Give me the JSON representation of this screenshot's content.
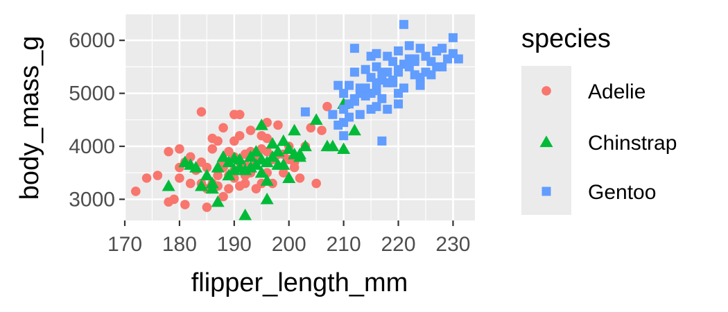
{
  "chart_data": {
    "type": "scatter",
    "xlabel": "flipper_length_mm",
    "ylabel": "body_mass_g",
    "xlim": [
      170,
      234
    ],
    "ylim": [
      2600,
      6500
    ],
    "x_ticks": [
      "170",
      "180",
      "190",
      "200",
      "210",
      "220",
      "230"
    ],
    "y_ticks": [
      "3000",
      "4000",
      "5000",
      "6000"
    ],
    "grid": true,
    "legend": {
      "title": "species",
      "position": "right"
    },
    "series": [
      {
        "name": "Adelie",
        "color": "#F8766D",
        "marker": "circle",
        "points": [
          [
            172,
            3150
          ],
          [
            174,
            3400
          ],
          [
            176,
            3450
          ],
          [
            178,
            3900
          ],
          [
            178,
            2950
          ],
          [
            179,
            3000
          ],
          [
            180,
            3950
          ],
          [
            180,
            3600
          ],
          [
            181,
            2900
          ],
          [
            182,
            3800
          ],
          [
            183,
            3550
          ],
          [
            184,
            3300
          ],
          [
            184,
            4650
          ],
          [
            185,
            3600
          ],
          [
            185,
            2850
          ],
          [
            185,
            3200
          ],
          [
            186,
            3950
          ],
          [
            187,
            3450
          ],
          [
            187,
            4100
          ],
          [
            188,
            3600
          ],
          [
            188,
            4350
          ],
          [
            189,
            3200
          ],
          [
            189,
            3900
          ],
          [
            190,
            4600
          ],
          [
            190,
            3550
          ],
          [
            190,
            4100
          ],
          [
            191,
            3700
          ],
          [
            191,
            4200
          ],
          [
            191,
            4600
          ],
          [
            192,
            3450
          ],
          [
            192,
            3850
          ],
          [
            193,
            4300
          ],
          [
            193,
            3500
          ],
          [
            194,
            3700
          ],
          [
            195,
            3950
          ],
          [
            195,
            3300
          ],
          [
            196,
            4150
          ],
          [
            196,
            4450
          ],
          [
            197,
            3750
          ],
          [
            198,
            4400
          ],
          [
            199,
            3850
          ],
          [
            200,
            4000
          ],
          [
            201,
            3600
          ],
          [
            202,
            3400
          ],
          [
            203,
            4000
          ],
          [
            204,
            4350
          ],
          [
            205,
            3300
          ],
          [
            206,
            4300
          ],
          [
            207,
            4750
          ],
          [
            183,
            3550
          ],
          [
            187,
            3250
          ],
          [
            189,
            3450
          ],
          [
            190,
            3400
          ],
          [
            192,
            3650
          ],
          [
            194,
            3800
          ],
          [
            196,
            3500
          ],
          [
            186,
            3300
          ],
          [
            188,
            3700
          ],
          [
            191,
            3250
          ],
          [
            184,
            3700
          ],
          [
            180,
            3400
          ],
          [
            182,
            3300
          ],
          [
            193,
            3900
          ],
          [
            195,
            4200
          ],
          [
            197,
            3300
          ],
          [
            199,
            3500
          ],
          [
            201,
            3700
          ],
          [
            181,
            3700
          ],
          [
            186,
            4150
          ],
          [
            188,
            3050
          ],
          [
            190,
            3800
          ],
          [
            192,
            3300
          ],
          [
            194,
            3200
          ],
          [
            196,
            3900
          ],
          [
            198,
            3850
          ],
          [
            200,
            3750
          ]
        ]
      },
      {
        "name": "Chinstrap",
        "color": "#00BA38",
        "marker": "triangle",
        "points": [
          [
            178,
            3250
          ],
          [
            181,
            3700
          ],
          [
            182,
            3650
          ],
          [
            183,
            3600
          ],
          [
            185,
            3450
          ],
          [
            186,
            3300
          ],
          [
            187,
            2950
          ],
          [
            187,
            3600
          ],
          [
            188,
            3800
          ],
          [
            189,
            3700
          ],
          [
            190,
            3550
          ],
          [
            191,
            3750
          ],
          [
            192,
            2700
          ],
          [
            192,
            3550
          ],
          [
            193,
            3800
          ],
          [
            194,
            3650
          ],
          [
            195,
            3500
          ],
          [
            195,
            4400
          ],
          [
            196,
            3700
          ],
          [
            197,
            3800
          ],
          [
            198,
            3650
          ],
          [
            199,
            3650
          ],
          [
            200,
            3950
          ],
          [
            201,
            3850
          ],
          [
            201,
            4300
          ],
          [
            202,
            3850
          ],
          [
            203,
            4000
          ],
          [
            205,
            4500
          ],
          [
            207,
            4000
          ],
          [
            208,
            4000
          ],
          [
            210,
            4800
          ],
          [
            212,
            4300
          ],
          [
            191,
            3600
          ],
          [
            193,
            3600
          ],
          [
            194,
            3900
          ],
          [
            196,
            3350
          ],
          [
            198,
            3900
          ],
          [
            200,
            3400
          ],
          [
            202,
            3800
          ],
          [
            189,
            3450
          ],
          [
            186,
            3200
          ],
          [
            184,
            3250
          ],
          [
            190,
            3775
          ],
          [
            195,
            3750
          ],
          [
            197,
            4050
          ],
          [
            199,
            4100
          ],
          [
            210,
            3950
          ],
          [
            196,
            3000
          ]
        ]
      },
      {
        "name": "Gentoo",
        "color": "#619CFF",
        "marker": "square",
        "points": [
          [
            203,
            4650
          ],
          [
            208,
            4600
          ],
          [
            209,
            5150
          ],
          [
            210,
            4450
          ],
          [
            210,
            4700
          ],
          [
            210,
            5000
          ],
          [
            211,
            4800
          ],
          [
            211,
            5150
          ],
          [
            212,
            4850
          ],
          [
            212,
            5400
          ],
          [
            213,
            4600
          ],
          [
            213,
            5100
          ],
          [
            214,
            4950
          ],
          [
            214,
            5450
          ],
          [
            215,
            4700
          ],
          [
            215,
            5300
          ],
          [
            215,
            5700
          ],
          [
            216,
            4750
          ],
          [
            216,
            5050
          ],
          [
            216,
            5500
          ],
          [
            217,
            4100
          ],
          [
            217,
            4900
          ],
          [
            217,
            5400
          ],
          [
            218,
            4700
          ],
          [
            218,
            5200
          ],
          [
            218,
            5700
          ],
          [
            219,
            5200
          ],
          [
            219,
            5600
          ],
          [
            220,
            4800
          ],
          [
            220,
            5400
          ],
          [
            220,
            5800
          ],
          [
            221,
            5100
          ],
          [
            221,
            6300
          ],
          [
            222,
            5500
          ],
          [
            222,
            5900
          ],
          [
            223,
            5350
          ],
          [
            223,
            5650
          ],
          [
            224,
            5300
          ],
          [
            224,
            5850
          ],
          [
            225,
            5400
          ],
          [
            225,
            5700
          ],
          [
            226,
            5600
          ],
          [
            227,
            5500
          ],
          [
            228,
            5500
          ],
          [
            229,
            5650
          ],
          [
            230,
            5750
          ],
          [
            230,
            6050
          ],
          [
            212,
            5850
          ],
          [
            216,
            5750
          ],
          [
            209,
            4400
          ],
          [
            213,
            5000
          ],
          [
            215,
            5000
          ],
          [
            219,
            5250
          ],
          [
            221,
            5550
          ],
          [
            224,
            5150
          ],
          [
            226,
            5350
          ],
          [
            228,
            5850
          ],
          [
            220,
            5000
          ],
          [
            218,
            5400
          ],
          [
            214,
            5100
          ],
          [
            210,
            4200
          ],
          [
            211,
            4550
          ],
          [
            222,
            5650
          ],
          [
            217,
            5250
          ],
          [
            227,
            5800
          ],
          [
            231,
            5650
          ],
          [
            212,
            4900
          ],
          [
            216,
            5200
          ],
          [
            220,
            5450
          ],
          [
            223,
            5600
          ]
        ]
      }
    ]
  }
}
